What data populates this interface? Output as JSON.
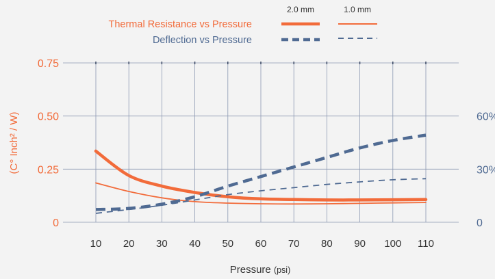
{
  "chart_data": {
    "type": "line",
    "xlabel": "Pressure",
    "xlabel_unit": "(psi)",
    "ylabel_left": "(C° Inch² / W)",
    "x": [
      10,
      20,
      30,
      40,
      50,
      60,
      70,
      80,
      90,
      100,
      110
    ],
    "x_tick_labels": [
      "10",
      "20",
      "30",
      "40",
      "50",
      "60",
      "70",
      "80",
      "90",
      "100",
      "110"
    ],
    "ylim_left": [
      0,
      0.75
    ],
    "ylim_right": [
      0,
      0.75
    ],
    "y_left_ticks": [
      {
        "value": 0,
        "label": "0"
      },
      {
        "value": 0.25,
        "label": "0.25"
      },
      {
        "value": 0.5,
        "label": "0.50"
      },
      {
        "value": 0.75,
        "label": "0.75"
      }
    ],
    "y_right_ticks": [
      {
        "value": 0,
        "label": "0"
      },
      {
        "value": 0.25,
        "label": "30%"
      },
      {
        "value": 0.5,
        "label": "60%"
      }
    ],
    "grid": true,
    "legend": {
      "position": "top-center",
      "column_headers": [
        "2.0 mm",
        "1.0 mm"
      ],
      "rows": [
        "Thermal Resistance vs Pressure",
        "Deflection vs Pressure"
      ]
    },
    "series": [
      {
        "name": "Thermal Resistance vs Pressure",
        "thickness": "2.0 mm",
        "axis": "left",
        "style": "solid-thick",
        "color": "#f26b3a",
        "y": [
          0.335,
          0.22,
          0.17,
          0.14,
          0.12,
          0.11,
          0.107,
          0.105,
          0.105,
          0.106,
          0.107
        ]
      },
      {
        "name": "Thermal Resistance vs Pressure",
        "thickness": "1.0 mm",
        "axis": "left",
        "style": "solid-thin",
        "color": "#f26b3a",
        "y": [
          0.185,
          0.145,
          0.115,
          0.097,
          0.09,
          0.087,
          0.086,
          0.087,
          0.089,
          0.091,
          0.093
        ]
      },
      {
        "name": "Deflection vs Pressure",
        "thickness": "2.0 mm",
        "axis": "right",
        "style": "dashed-thick",
        "color": "#4f6a92",
        "y": [
          0.06,
          0.065,
          0.085,
          0.12,
          0.17,
          0.215,
          0.26,
          0.305,
          0.35,
          0.385,
          0.41
        ]
      },
      {
        "name": "Deflection vs Pressure",
        "thickness": "1.0 mm",
        "axis": "right",
        "style": "dashed-thin",
        "color": "#4f6a92",
        "y": [
          0.042,
          0.06,
          0.08,
          0.105,
          0.13,
          0.148,
          0.163,
          0.178,
          0.19,
          0.2,
          0.205
        ]
      }
    ],
    "colors": {
      "orange": "#f26b3a",
      "blue": "#4f6a92",
      "grid": "#8b98b2",
      "background": "#f3f3f3"
    }
  }
}
